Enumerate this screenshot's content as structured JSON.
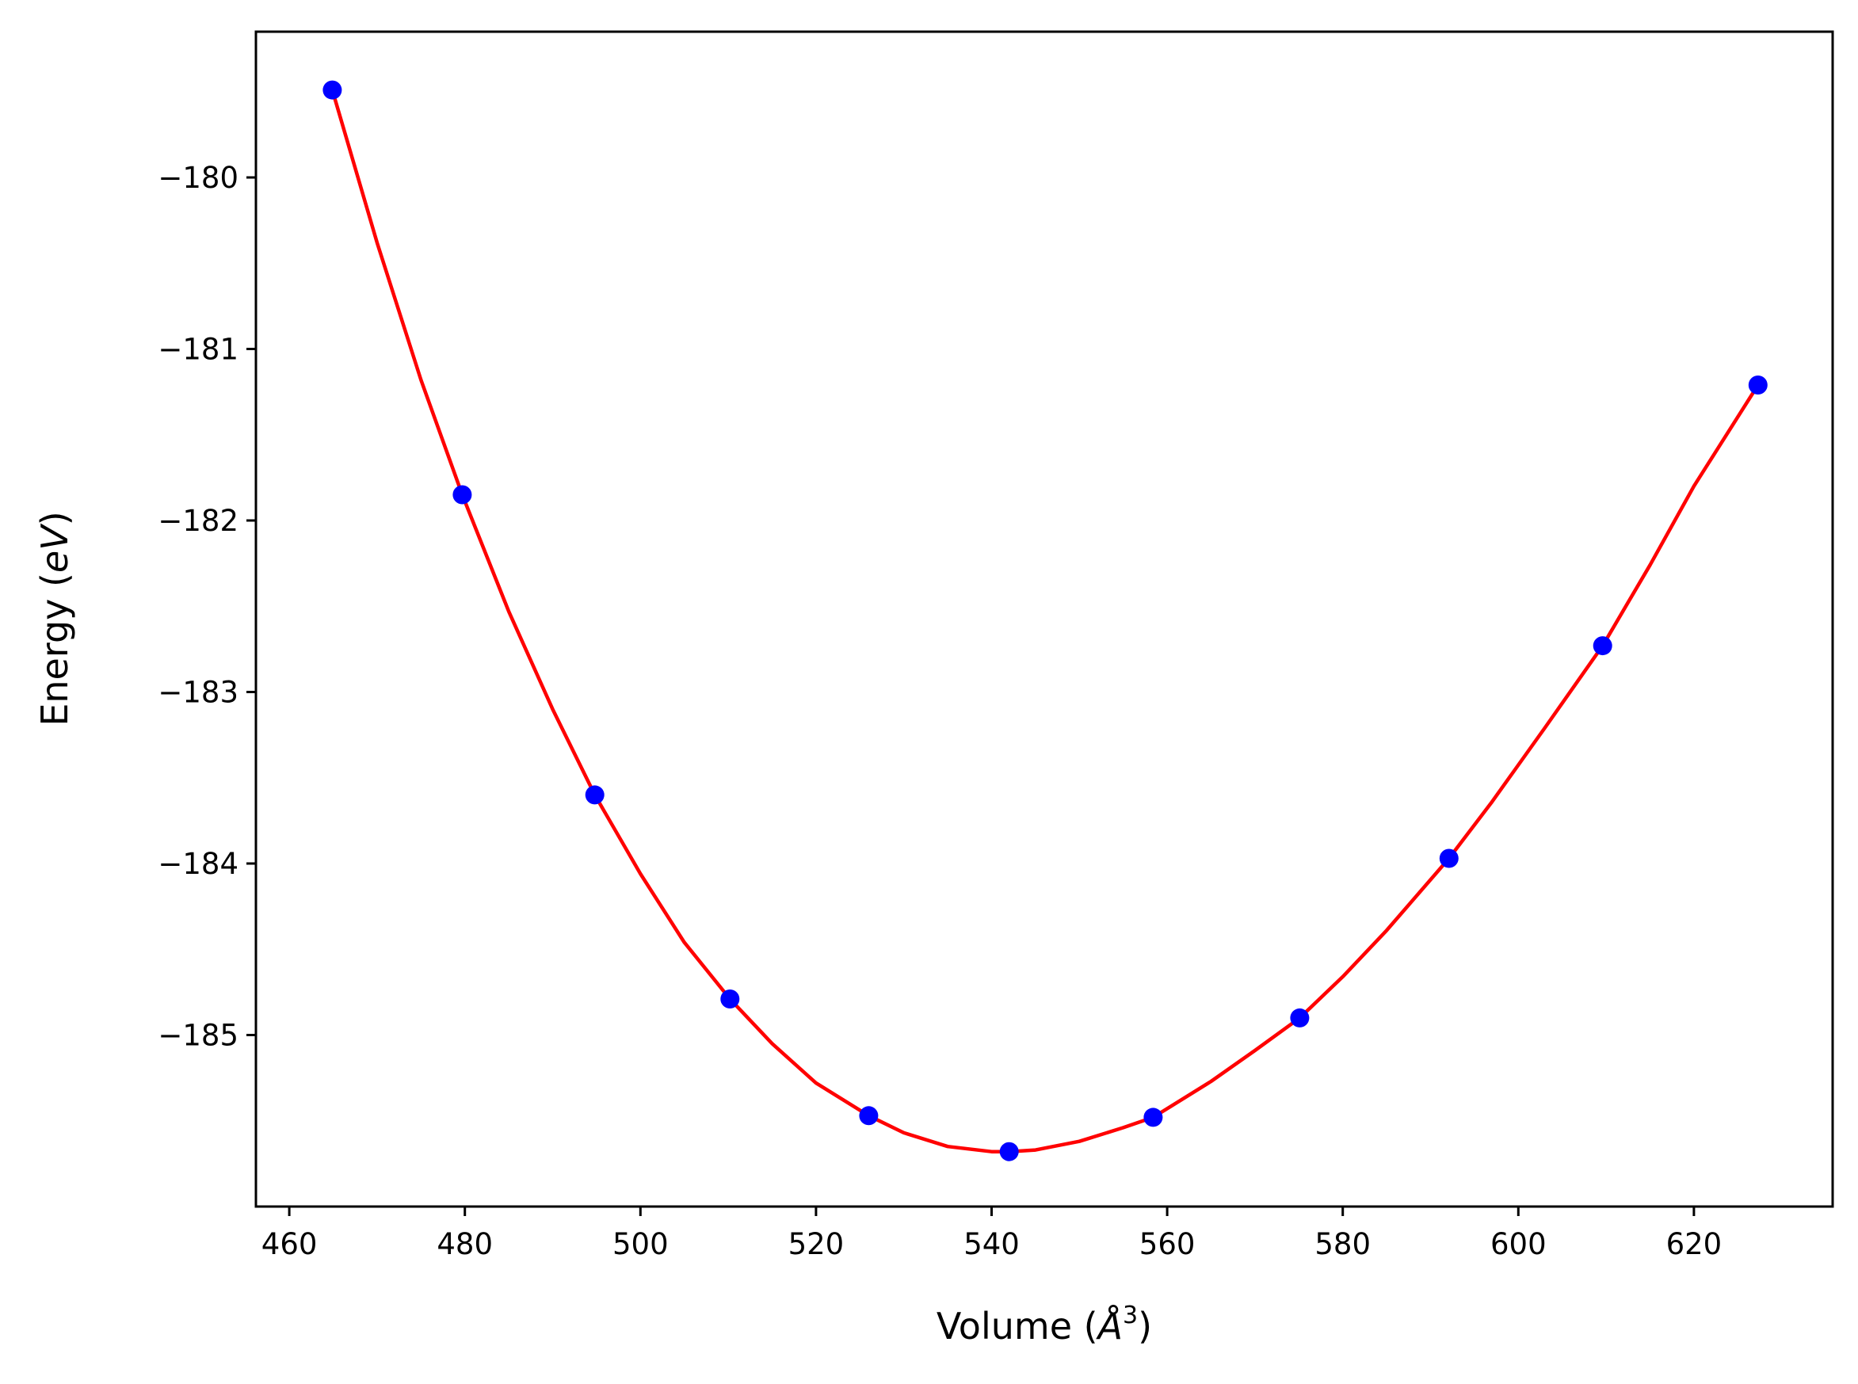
{
  "chart_data": {
    "type": "scatter",
    "title": "",
    "xlabel": {
      "prefix": "Volume (",
      "symbol": "Å",
      "superscript": "3",
      "suffix": ")"
    },
    "ylabel": {
      "prefix": "Energy (",
      "symbol": "eV",
      "suffix": ")"
    },
    "xlim": [
      456.2,
      635.8
    ],
    "ylim": [
      -186.0,
      -179.15
    ],
    "grid": false,
    "legend": "none",
    "x_ticks": [
      460,
      480,
      500,
      520,
      540,
      560,
      580,
      600,
      620
    ],
    "x_tick_labels": [
      "460",
      "480",
      "500",
      "520",
      "540",
      "560",
      "580",
      "600",
      "620"
    ],
    "y_ticks": [
      -180,
      -181,
      -182,
      -183,
      -184,
      -185
    ],
    "y_tick_labels": [
      "−180",
      "−181",
      "−182",
      "−183",
      "−184",
      "−185"
    ],
    "series": [
      {
        "kind": "points",
        "color": "#0000ff",
        "x": [
          464.9,
          479.7,
          494.8,
          510.2,
          526.0,
          542.0,
          558.4,
          575.1,
          592.1,
          609.6,
          627.3
        ],
        "y": [
          -179.49,
          -181.85,
          -183.6,
          -184.79,
          -185.47,
          -185.68,
          -185.48,
          -184.9,
          -183.97,
          -182.73,
          -181.21
        ]
      },
      {
        "kind": "fit-curve",
        "color": "#ff0000",
        "x": [
          464.9,
          470.0,
          475.0,
          479.7,
          485.0,
          490.0,
          494.8,
          500.0,
          505.0,
          510.2,
          515.0,
          520.0,
          526.0,
          530.0,
          535.0,
          540.0,
          542.0,
          545.0,
          550.0,
          555.0,
          558.4,
          565.0,
          570.0,
          575.1,
          580.0,
          585.0,
          592.1,
          597.0,
          603.0,
          609.6,
          615.0,
          620.0,
          627.3
        ],
        "y": [
          -179.49,
          -180.38,
          -181.18,
          -181.85,
          -182.53,
          -183.1,
          -183.6,
          -184.06,
          -184.46,
          -184.79,
          -185.05,
          -185.28,
          -185.47,
          -185.57,
          -185.65,
          -185.68,
          -185.68,
          -185.67,
          -185.62,
          -185.54,
          -185.48,
          -185.27,
          -185.09,
          -184.9,
          -184.66,
          -184.39,
          -183.97,
          -183.64,
          -183.21,
          -182.73,
          -182.26,
          -181.8,
          -181.21
        ]
      }
    ]
  }
}
